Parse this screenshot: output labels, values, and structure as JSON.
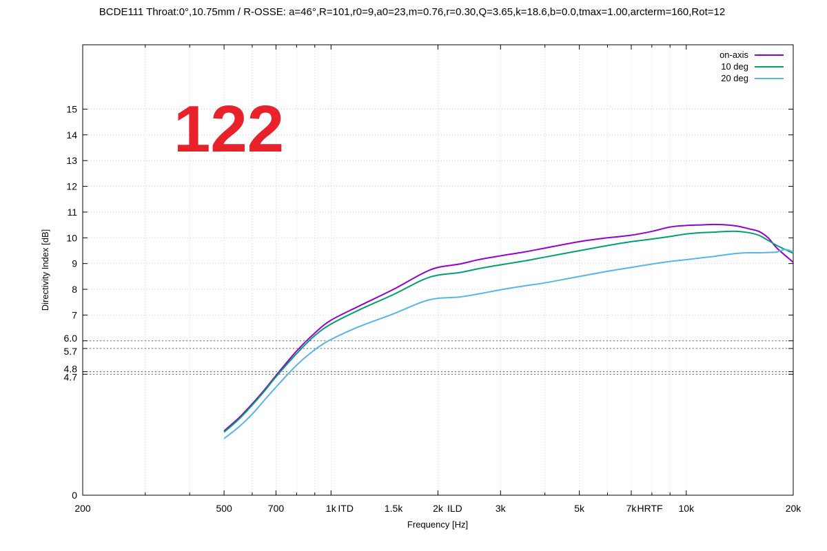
{
  "chart_data": {
    "type": "line",
    "title": "BCDE111 Throat:0°,10.75mm / R-OSSE: a=46°,R=101,r0=9,a0=23,m=0.76,r=0.30,Q=3.65,k=18.6,b=0.0,tmax=1.00,arcterm=160,Rot=12",
    "badge": "122",
    "badge_color": "#e8212b",
    "xlabel": "Frequency [Hz]",
    "ylabel": "Directivity Index [dB]",
    "x_scale": "log",
    "xlim": [
      200,
      20000
    ],
    "ylim": [
      0,
      17.5
    ],
    "grid": true,
    "legend_position": "top-right",
    "x_ticks": [
      {
        "value": 200,
        "label": "200"
      },
      {
        "value": 500,
        "label": "500"
      },
      {
        "value": 700,
        "label": "700"
      },
      {
        "value": 1000,
        "label": "1k"
      },
      {
        "value": 1100,
        "label": "ITD"
      },
      {
        "value": 1500,
        "label": "1.5k"
      },
      {
        "value": 2000,
        "label": "2k"
      },
      {
        "value": 2230,
        "label": "ILD"
      },
      {
        "value": 3000,
        "label": "3k"
      },
      {
        "value": 5000,
        "label": "5k"
      },
      {
        "value": 7000,
        "label": "7k"
      },
      {
        "value": 7900,
        "label": "HRTF"
      },
      {
        "value": 10000,
        "label": "10k"
      },
      {
        "value": 20000,
        "label": "20k"
      }
    ],
    "y_ticks": [
      {
        "value": 0,
        "label": "0"
      },
      {
        "value": 4.7,
        "label": "4.7"
      },
      {
        "value": 4.8,
        "label": "4.8"
      },
      {
        "value": 5.7,
        "label": "5.7"
      },
      {
        "value": 6.0,
        "label": "6.0"
      },
      {
        "value": 7,
        "label": "7"
      },
      {
        "value": 8,
        "label": "8"
      },
      {
        "value": 9,
        "label": "9"
      },
      {
        "value": 10,
        "label": "10"
      },
      {
        "value": 11,
        "label": "11"
      },
      {
        "value": 12,
        "label": "12"
      },
      {
        "value": 13,
        "label": "13"
      },
      {
        "value": 14,
        "label": "14"
      },
      {
        "value": 15,
        "label": "15"
      }
    ],
    "y_dotted_lines": [
      4.7,
      4.8,
      5.7,
      6.0
    ],
    "series": [
      {
        "name": "on-axis",
        "color": "#9400d3",
        "x": [
          500,
          550,
          600,
          650,
          700,
          800,
          900,
          1000,
          1200,
          1500,
          1800,
          2000,
          2300,
          2600,
          3000,
          3500,
          4000,
          5000,
          6000,
          7000,
          8000,
          9000,
          10000,
          11000,
          12000,
          13000,
          14000,
          15000,
          16000,
          17000,
          18000,
          20000
        ],
        "y": [
          2.5,
          3.0,
          3.55,
          4.1,
          4.65,
          5.6,
          6.3,
          6.8,
          7.35,
          8.0,
          8.6,
          8.85,
          8.98,
          9.15,
          9.3,
          9.45,
          9.6,
          9.85,
          10.0,
          10.1,
          10.25,
          10.42,
          10.48,
          10.5,
          10.52,
          10.5,
          10.45,
          10.35,
          10.25,
          10.0,
          9.6,
          9.05
        ]
      },
      {
        "name": "10 deg",
        "color": "#009e73",
        "x": [
          500,
          550,
          600,
          650,
          700,
          800,
          900,
          1000,
          1200,
          1500,
          1800,
          2000,
          2300,
          2600,
          3000,
          3500,
          4000,
          5000,
          6000,
          7000,
          8000,
          9000,
          10000,
          11000,
          12000,
          13000,
          14000,
          15000,
          16000,
          17000,
          18000,
          20000
        ],
        "y": [
          2.45,
          2.95,
          3.5,
          4.05,
          4.6,
          5.5,
          6.2,
          6.65,
          7.2,
          7.8,
          8.35,
          8.55,
          8.65,
          8.8,
          8.95,
          9.1,
          9.25,
          9.5,
          9.7,
          9.85,
          9.95,
          10.05,
          10.15,
          10.2,
          10.22,
          10.25,
          10.25,
          10.2,
          10.1,
          9.9,
          9.7,
          9.4
        ]
      },
      {
        "name": "20 deg",
        "color": "#56b4e9",
        "x": [
          500,
          550,
          600,
          650,
          700,
          800,
          900,
          1000,
          1200,
          1500,
          1800,
          2000,
          2300,
          2600,
          3000,
          3500,
          4000,
          5000,
          6000,
          7000,
          8000,
          9000,
          10000,
          11000,
          12000,
          13000,
          14000,
          15000,
          16000,
          17000,
          18000,
          19000,
          20000
        ],
        "y": [
          2.2,
          2.65,
          3.15,
          3.7,
          4.2,
          5.05,
          5.65,
          6.05,
          6.55,
          7.05,
          7.5,
          7.65,
          7.7,
          7.82,
          7.98,
          8.13,
          8.25,
          8.5,
          8.7,
          8.85,
          8.98,
          9.08,
          9.15,
          9.22,
          9.28,
          9.35,
          9.4,
          9.42,
          9.42,
          9.43,
          9.45,
          9.55,
          9.45
        ]
      }
    ]
  }
}
